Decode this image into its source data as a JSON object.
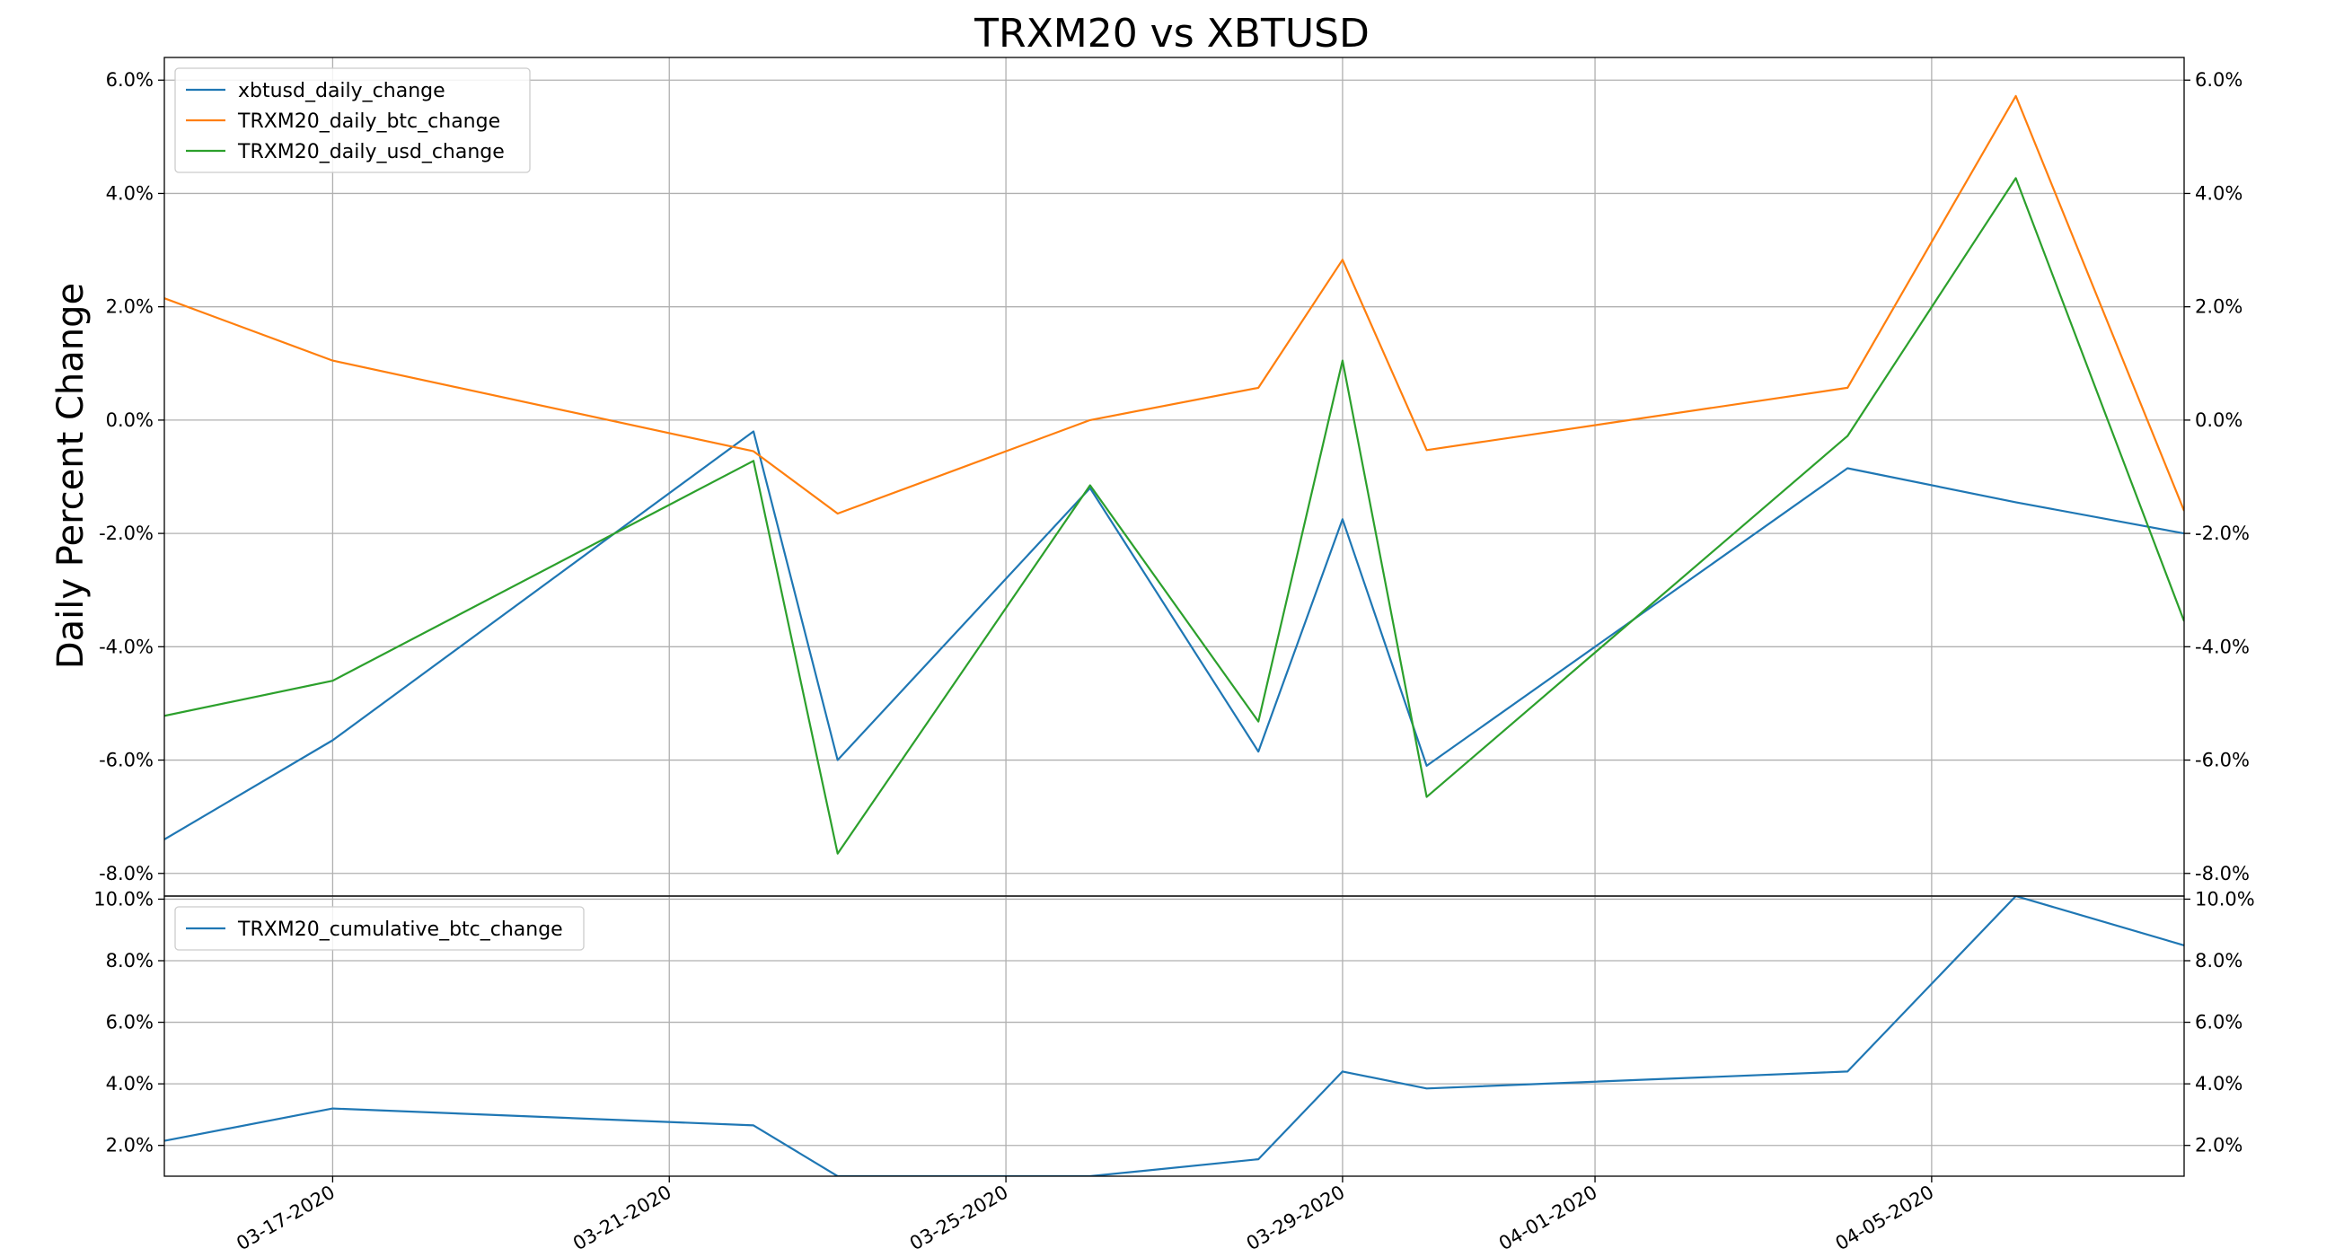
{
  "chart_data": [
    {
      "type": "line",
      "title": "TRXM20 vs XBTUSD",
      "xlabel": "",
      "ylabel": "Daily Percent Change",
      "x": [
        "03-15-2020",
        "03-17-2020",
        "03-22-2020",
        "03-23-2020",
        "03-26-2020",
        "03-28-2020",
        "03-29-2020",
        "03-30-2020",
        "04-04-2020",
        "04-06-2020",
        "04-08-2020"
      ],
      "xlim": [
        "03-15-2020",
        "04-08-2020"
      ],
      "ylim": [
        -8.4,
        6.4
      ],
      "y_ticks": [
        "6.0%",
        "4.0%",
        "2.0%",
        "0.0%",
        "-2.0%",
        "-4.0%",
        "-6.0%",
        "-8.0%"
      ],
      "y_tick_values": [
        6,
        4,
        2,
        0,
        -2,
        -4,
        -6,
        -8
      ],
      "y_ticks_right": true,
      "grid": true,
      "legend_position": "upper-left",
      "series": [
        {
          "name": "xbtusd_daily_change",
          "color": "#1f77b4",
          "values": [
            -7.4,
            -5.65,
            -0.2,
            -6.0,
            -1.2,
            -5.85,
            -1.75,
            -6.1,
            -0.85,
            -1.45,
            -2.0
          ]
        },
        {
          "name": "TRXM20_daily_btc_change",
          "color": "#ff7f0e",
          "values": [
            2.15,
            1.05,
            -0.55,
            -1.65,
            0.0,
            0.57,
            2.83,
            -0.53,
            0.57,
            5.72,
            -1.6
          ]
        },
        {
          "name": "TRXM20_daily_usd_change",
          "color": "#2ca02c",
          "values": [
            -5.22,
            -4.6,
            -0.72,
            -7.65,
            -1.15,
            -5.32,
            1.05,
            -6.65,
            -0.28,
            4.27,
            -3.55
          ]
        }
      ]
    },
    {
      "type": "line",
      "title": "",
      "xlabel": "",
      "ylabel": "",
      "x": [
        "03-15-2020",
        "03-17-2020",
        "03-22-2020",
        "03-23-2020",
        "03-26-2020",
        "03-28-2020",
        "03-29-2020",
        "03-30-2020",
        "04-04-2020",
        "04-06-2020",
        "04-08-2020"
      ],
      "xlim": [
        "03-15-2020",
        "04-08-2020"
      ],
      "ylim": [
        1.0,
        10.1
      ],
      "y_ticks": [
        "10.0%",
        "8.0%",
        "6.0%",
        "4.0%",
        "2.0%"
      ],
      "y_tick_values": [
        10,
        8,
        6,
        4,
        2
      ],
      "y_ticks_right": true,
      "x_ticks": [
        "03-17-2020",
        "03-21-2020",
        "03-25-2020",
        "03-29-2020",
        "04-01-2020",
        "04-05-2020"
      ],
      "grid": true,
      "legend_position": "upper-left",
      "series": [
        {
          "name": "TRXM20_cumulative_btc_change",
          "color": "#1f77b4",
          "values": [
            2.15,
            3.2,
            2.65,
            1.0,
            1.0,
            1.55,
            4.4,
            3.85,
            4.4,
            10.1,
            8.5
          ]
        }
      ]
    }
  ]
}
